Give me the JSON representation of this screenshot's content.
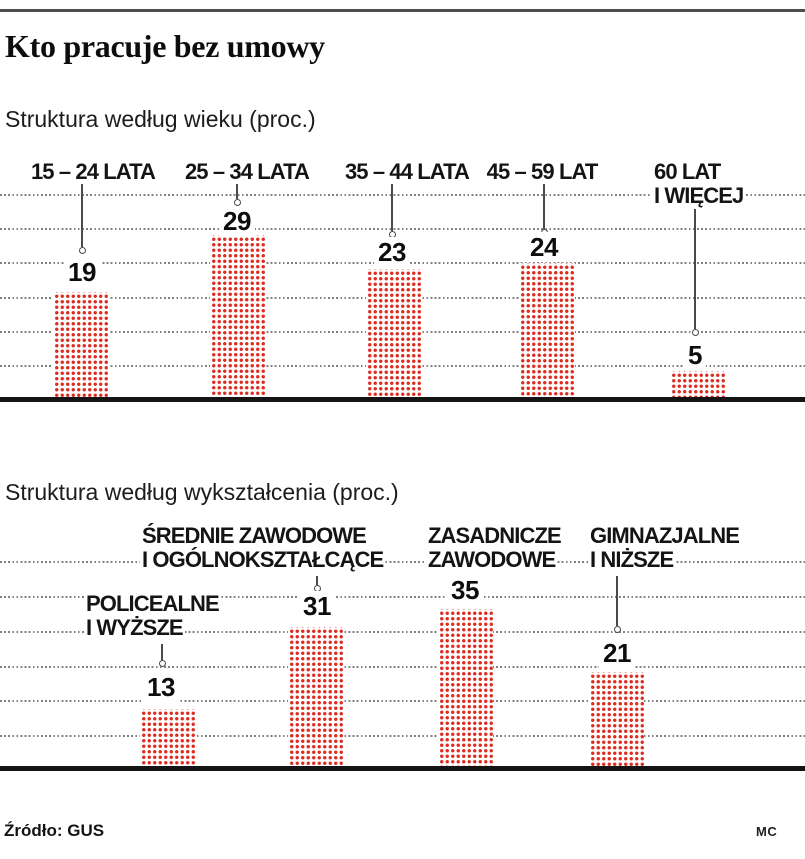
{
  "header": {
    "title": "Kto pracuje bez umowy"
  },
  "footer": {
    "source": "Źródło: GUS",
    "credit": "MC"
  },
  "colors": {
    "bar_red": "#dd2b20",
    "gridline_gray": "#818181",
    "leader_gray": "#4a4a4a",
    "baseline_black": "#141414",
    "top_rule_gray": "#4e4e4e"
  },
  "chart_data": [
    {
      "type": "bar",
      "title": "Struktura według wieku (proc.)",
      "categories": [
        "15 – 24 LATA",
        "25 – 34 LATA",
        "35 – 44 LATA",
        "45 – 59 LAT",
        "60 LAT\nI WIĘCEJ"
      ],
      "values": [
        19,
        29,
        23,
        24,
        5
      ],
      "ylabel": "proc.",
      "ylim": [
        0,
        36
      ],
      "grid": "horizontal dotted lines, no tick labels",
      "legend": "none",
      "bar_style": "red dot-grid pictogram bars",
      "annotations": "value shown above each bar, linked to category label by a thin leader line ending in a small circle"
    },
    {
      "type": "bar",
      "title": "Struktura według wykształcenia (proc.)",
      "categories": [
        "POLICEALNE\nI WYŻSZE",
        "ŚREDNIE ZAWODOWE\nI OGÓLNOKSZTAŁCĄCE",
        "ZASADNICZE\nZAWODOWE",
        "GIMNAZJALNE\nI NIŻSZE"
      ],
      "values": [
        13,
        31,
        35,
        21
      ],
      "ylabel": "proc.",
      "ylim": [
        0,
        45
      ],
      "grid": "horizontal dotted lines, no tick labels",
      "legend": "none",
      "bar_style": "red dot-grid pictogram bars",
      "annotations": "value shown above each bar, linked to category label by a thin leader line ending in a small circle"
    }
  ]
}
